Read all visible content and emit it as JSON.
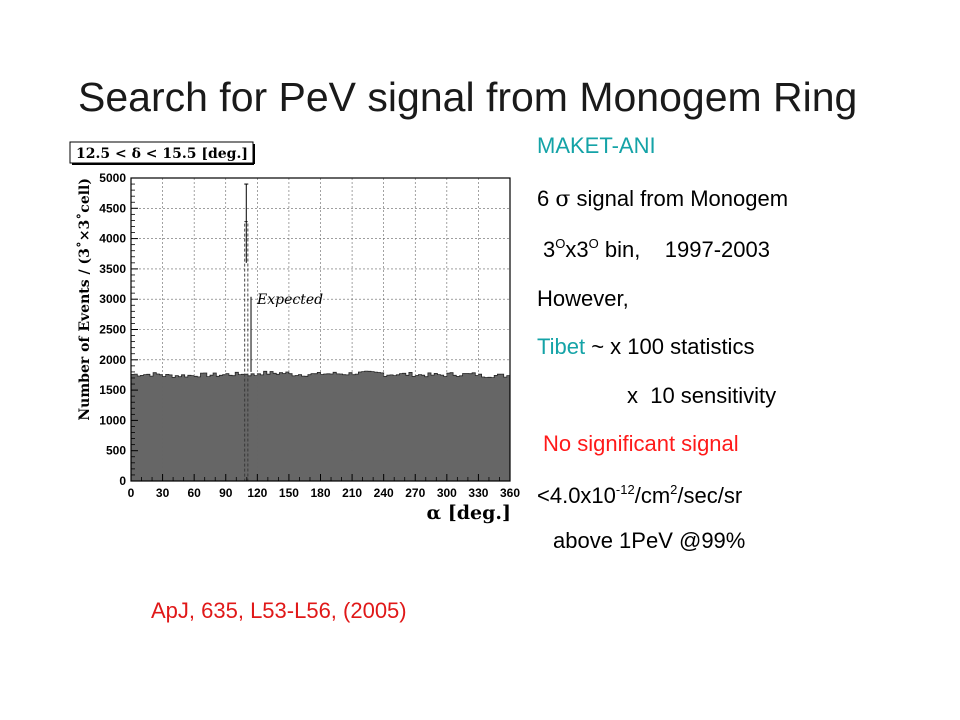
{
  "slide": {
    "title": "Search for PeV signal from Monogem Ring",
    "citation": "ApJ, 635, L53-L56, (2005)"
  },
  "bullets": {
    "line1": "MAKET-ANI",
    "line2_a": "6 ",
    "line2_sigma": "σ",
    "line2_b": " signal from Monogem",
    "line3_a": "3",
    "line3_sup1": "O",
    "line3_b": "x3",
    "line3_sup2": "O",
    "line3_c": " bin,    1997-2003",
    "line4": "However,",
    "line5_a": "Tibet",
    "line5_b": " ~ x 100 statistics",
    "line6": "x  10 sensitivity",
    "line7": "No significant signal",
    "line8_a": "<4.0x10",
    "line8_sup1": "-12",
    "line8_b": "/cm",
    "line8_sup2": "2",
    "line8_c": "/sec/sr",
    "line9": "above 1PeV @99%"
  },
  "colors": {
    "teal": "#14a3a7",
    "red": "#ff1a1a",
    "histogram_fill": "#666666",
    "grid": "#666666"
  },
  "chart_data": {
    "type": "bar",
    "title": "12.5 < δ < 15.5 [deg.]",
    "xlabel": "α [deg.]",
    "ylabel": "Number of Events / (3˚×3˚cell)",
    "xlim": [
      0,
      360
    ],
    "ylim": [
      0,
      5000
    ],
    "x_ticks": [
      "0",
      "30",
      "60",
      "90",
      "120",
      "150",
      "180",
      "210",
      "240",
      "270",
      "300",
      "330",
      "360"
    ],
    "y_ticks": [
      "0",
      "500",
      "1000",
      "1500",
      "2000",
      "2500",
      "3000",
      "3500",
      "4000",
      "4500",
      "5000"
    ],
    "grid": true,
    "bin_width": 3,
    "background_level": 1760,
    "bins_alpha_start": [
      0,
      30,
      60,
      90,
      105,
      108,
      111,
      114,
      120,
      150,
      180,
      210,
      240,
      270,
      300,
      330,
      357
    ],
    "bins_counts": [
      1760,
      1740,
      1750,
      1760,
      1780,
      1770,
      1760,
      1750,
      1780,
      1760,
      1770,
      1780,
      1760,
      1750,
      1760,
      1740,
      1740
    ],
    "signal_bin": {
      "alpha": [
        108,
        111
      ],
      "counts": 4280,
      "error_high": 4900,
      "error_low": 3600
    },
    "expected_annotation": "Expected",
    "expected_marker_alpha": 114
  }
}
